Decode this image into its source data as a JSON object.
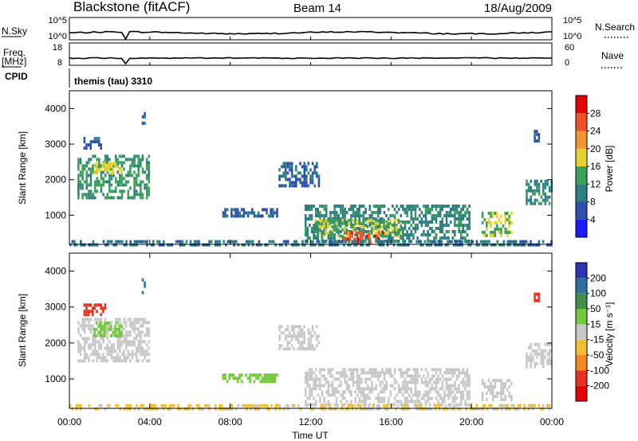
{
  "header": {
    "title": "Blackstone (fitACF)",
    "beam": "Beam 14",
    "date": "18/Aug/2009"
  },
  "noise_panel": {
    "left_label": "N.Sky",
    "left_ticks": [
      "10^5",
      "10^0"
    ],
    "right_label": "N.Search",
    "right_ticks": [
      "10^5",
      "10^0"
    ]
  },
  "freq_panel": {
    "left_label_1": "Freq.",
    "left_label_2": "[MHz]",
    "left_ticks": [
      "18",
      "8"
    ],
    "right_label": "Nave",
    "right_ticks": [
      "60",
      "0"
    ]
  },
  "cpid_panel": {
    "label": "CPID",
    "value": "themis (tau) 3310"
  },
  "power_panel": {
    "ylabel": "Slant Range [km]",
    "yticks": [
      "4000",
      "3000",
      "2000",
      "1000"
    ],
    "colorbar_label": "Power [dB]",
    "colorbar_ticks": [
      "28",
      "24",
      "20",
      "16",
      "12",
      "8",
      "4"
    ],
    "colors": [
      "#1a1aff",
      "#2c4fae",
      "#2e7f7f",
      "#3aa05a",
      "#e6d22d",
      "#f0962d",
      "#f05028",
      "#e60000"
    ]
  },
  "velocity_panel": {
    "ylabel": "Slant Range [km]",
    "yticks": [
      "4000",
      "3000",
      "2000",
      "1000"
    ],
    "colorbar_label": "Velocity [m s⁻¹]",
    "colorbar_ticks": [
      "200",
      "100",
      "50",
      "15",
      "-15",
      "-50",
      "-100",
      "-200"
    ],
    "colors": [
      "#2a35b0",
      "#2f6fa0",
      "#3f8f4a",
      "#73c93a",
      "#c8c8c8",
      "#f0c030",
      "#f08a20",
      "#e83020",
      "#e60000"
    ]
  },
  "x_axis": {
    "xlabel": "Time UT",
    "ticks": [
      "00:00",
      "04:00",
      "08:00",
      "12:00",
      "16:00",
      "20:00",
      "00:00"
    ]
  },
  "chart_data": [
    {
      "type": "line",
      "title": "N.Sky / N.Search",
      "x_range_hours": [
        0,
        24
      ],
      "series": [
        {
          "values_level": "near 10^0 baseline, nearly constant"
        }
      ]
    },
    {
      "type": "line",
      "title": "Freq. [MHz] / Nave",
      "x_range_hours": [
        0,
        24
      ],
      "series": [
        {
          "values_level": "constant near 10 MHz"
        }
      ]
    },
    {
      "type": "heatmap",
      "title": "Power [dB]",
      "xlabel": "Time UT",
      "ylabel": "Slant Range [km]",
      "xlim_hours": [
        0,
        24
      ],
      "ylim": [
        180,
        4500
      ],
      "clim": [
        0,
        32
      ],
      "regions": [
        {
          "t0": 0.4,
          "t1": 4.0,
          "r0": 1500,
          "r1": 2700,
          "level": 12
        },
        {
          "t0": 0.7,
          "t1": 1.6,
          "r0": 2900,
          "r1": 3200,
          "level": 6
        },
        {
          "t0": 1.2,
          "t1": 2.6,
          "r0": 2200,
          "r1": 2500,
          "level": 18
        },
        {
          "t0": 3.6,
          "t1": 3.8,
          "r0": 3500,
          "r1": 3900,
          "level": 6
        },
        {
          "t0": 7.6,
          "t1": 10.3,
          "r0": 950,
          "r1": 1200,
          "level": 6
        },
        {
          "t0": 10.4,
          "t1": 12.4,
          "r0": 1800,
          "r1": 2500,
          "level": 6
        },
        {
          "t0": 11.7,
          "t1": 19.9,
          "r0": 300,
          "r1": 1300,
          "level": 10
        },
        {
          "t0": 12.2,
          "t1": 16.5,
          "r0": 400,
          "r1": 900,
          "level": 16
        },
        {
          "t0": 13.6,
          "t1": 15.6,
          "r0": 260,
          "r1": 550,
          "level": 28
        },
        {
          "t0": 20.5,
          "t1": 22.0,
          "r0": 400,
          "r1": 1100,
          "level": 16
        },
        {
          "t0": 22.7,
          "t1": 24.0,
          "r0": 1300,
          "r1": 2000,
          "level": 10
        },
        {
          "t0": 23.1,
          "t1": 23.4,
          "r0": 3100,
          "r1": 3400,
          "level": 6
        },
        {
          "t0": 0.0,
          "t1": 24.0,
          "r0": 180,
          "r1": 300,
          "level": 8
        }
      ]
    },
    {
      "type": "heatmap",
      "title": "Velocity [m s⁻¹]",
      "xlabel": "Time UT",
      "ylabel": "Slant Range [km]",
      "xlim_hours": [
        0,
        24
      ],
      "ylim": [
        180,
        4500
      ],
      "clim": [
        -200,
        200
      ],
      "regions": [
        {
          "t0": 0.4,
          "t1": 4.0,
          "r0": 1500,
          "r1": 2700,
          "level": 0
        },
        {
          "t0": 0.7,
          "t1": 1.8,
          "r0": 2800,
          "r1": 3100,
          "level": -150
        },
        {
          "t0": 1.2,
          "t1": 2.6,
          "r0": 2200,
          "r1": 2600,
          "level": 60
        },
        {
          "t0": 3.6,
          "t1": 3.8,
          "r0": 3400,
          "r1": 3800,
          "level": 150
        },
        {
          "t0": 7.6,
          "t1": 10.3,
          "r0": 950,
          "r1": 1150,
          "level": 60
        },
        {
          "t0": 10.4,
          "t1": 12.4,
          "r0": 1800,
          "r1": 2500,
          "level": 0
        },
        {
          "t0": 11.7,
          "t1": 19.9,
          "r0": 300,
          "r1": 1300,
          "level": 0
        },
        {
          "t0": 20.5,
          "t1": 22.0,
          "r0": 400,
          "r1": 1000,
          "level": 0
        },
        {
          "t0": 22.7,
          "t1": 24.0,
          "r0": 1300,
          "r1": 2000,
          "level": 0
        },
        {
          "t0": 23.1,
          "t1": 23.4,
          "r0": 3200,
          "r1": 3400,
          "level": -160
        },
        {
          "t0": 0.0,
          "t1": 24.0,
          "r0": 180,
          "r1": 300,
          "level": -30
        }
      ]
    }
  ]
}
